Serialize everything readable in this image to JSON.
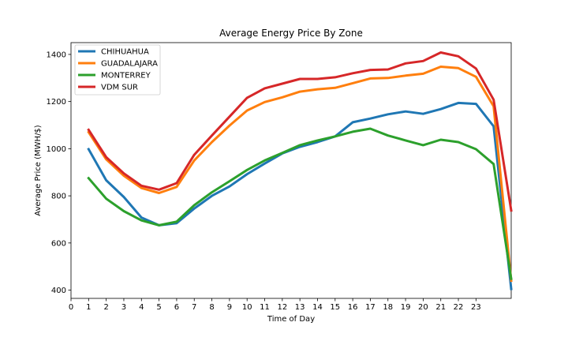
{
  "chart_data": {
    "type": "line",
    "title": "Average Energy Price By Zone",
    "xlabel": "Time of Day",
    "ylabel": "Average Price (MWH/$)",
    "xlim": [
      0,
      25
    ],
    "ylim": [
      365,
      1450
    ],
    "xticks": [
      0,
      1,
      2,
      3,
      4,
      5,
      6,
      7,
      8,
      9,
      10,
      11,
      12,
      13,
      14,
      15,
      16,
      17,
      18,
      19,
      20,
      21,
      22,
      23
    ],
    "yticks": [
      400,
      600,
      800,
      1000,
      1200,
      1400
    ],
    "grid": false,
    "legend_position": "top-left",
    "x": [
      1,
      2,
      3,
      4,
      5,
      6,
      7,
      8,
      9,
      10,
      11,
      12,
      13,
      14,
      15,
      16,
      17,
      18,
      19,
      20,
      21,
      22,
      23,
      24,
      25
    ],
    "series": [
      {
        "name": "CHIHUAHUA",
        "color": "#1f77b4",
        "values": [
          998,
          866,
          795,
          708,
          675,
          684,
          746,
          800,
          840,
          892,
          937,
          980,
          1008,
          1028,
          1052,
          1112,
          1128,
          1146,
          1158,
          1148,
          1168,
          1194,
          1190,
          1095,
          405
        ]
      },
      {
        "name": "GUADALAJARA",
        "color": "#ff7f0e",
        "values": [
          1070,
          955,
          885,
          833,
          812,
          838,
          950,
          1028,
          1098,
          1162,
          1198,
          1218,
          1242,
          1252,
          1258,
          1278,
          1298,
          1300,
          1310,
          1318,
          1348,
          1342,
          1305,
          1180,
          440
        ]
      },
      {
        "name": "MONTERREY",
        "color": "#2ca02c",
        "values": [
          875,
          788,
          735,
          696,
          675,
          690,
          760,
          815,
          862,
          910,
          950,
          982,
          1015,
          1035,
          1052,
          1072,
          1085,
          1056,
          1035,
          1015,
          1038,
          1028,
          998,
          935,
          448
        ]
      },
      {
        "name": "VDM SUR",
        "color": "#d62728",
        "values": [
          1080,
          964,
          895,
          843,
          826,
          854,
          974,
          1056,
          1136,
          1216,
          1256,
          1276,
          1296,
          1296,
          1303,
          1320,
          1334,
          1336,
          1362,
          1372,
          1408,
          1392,
          1340,
          1208,
          738
        ]
      }
    ]
  }
}
